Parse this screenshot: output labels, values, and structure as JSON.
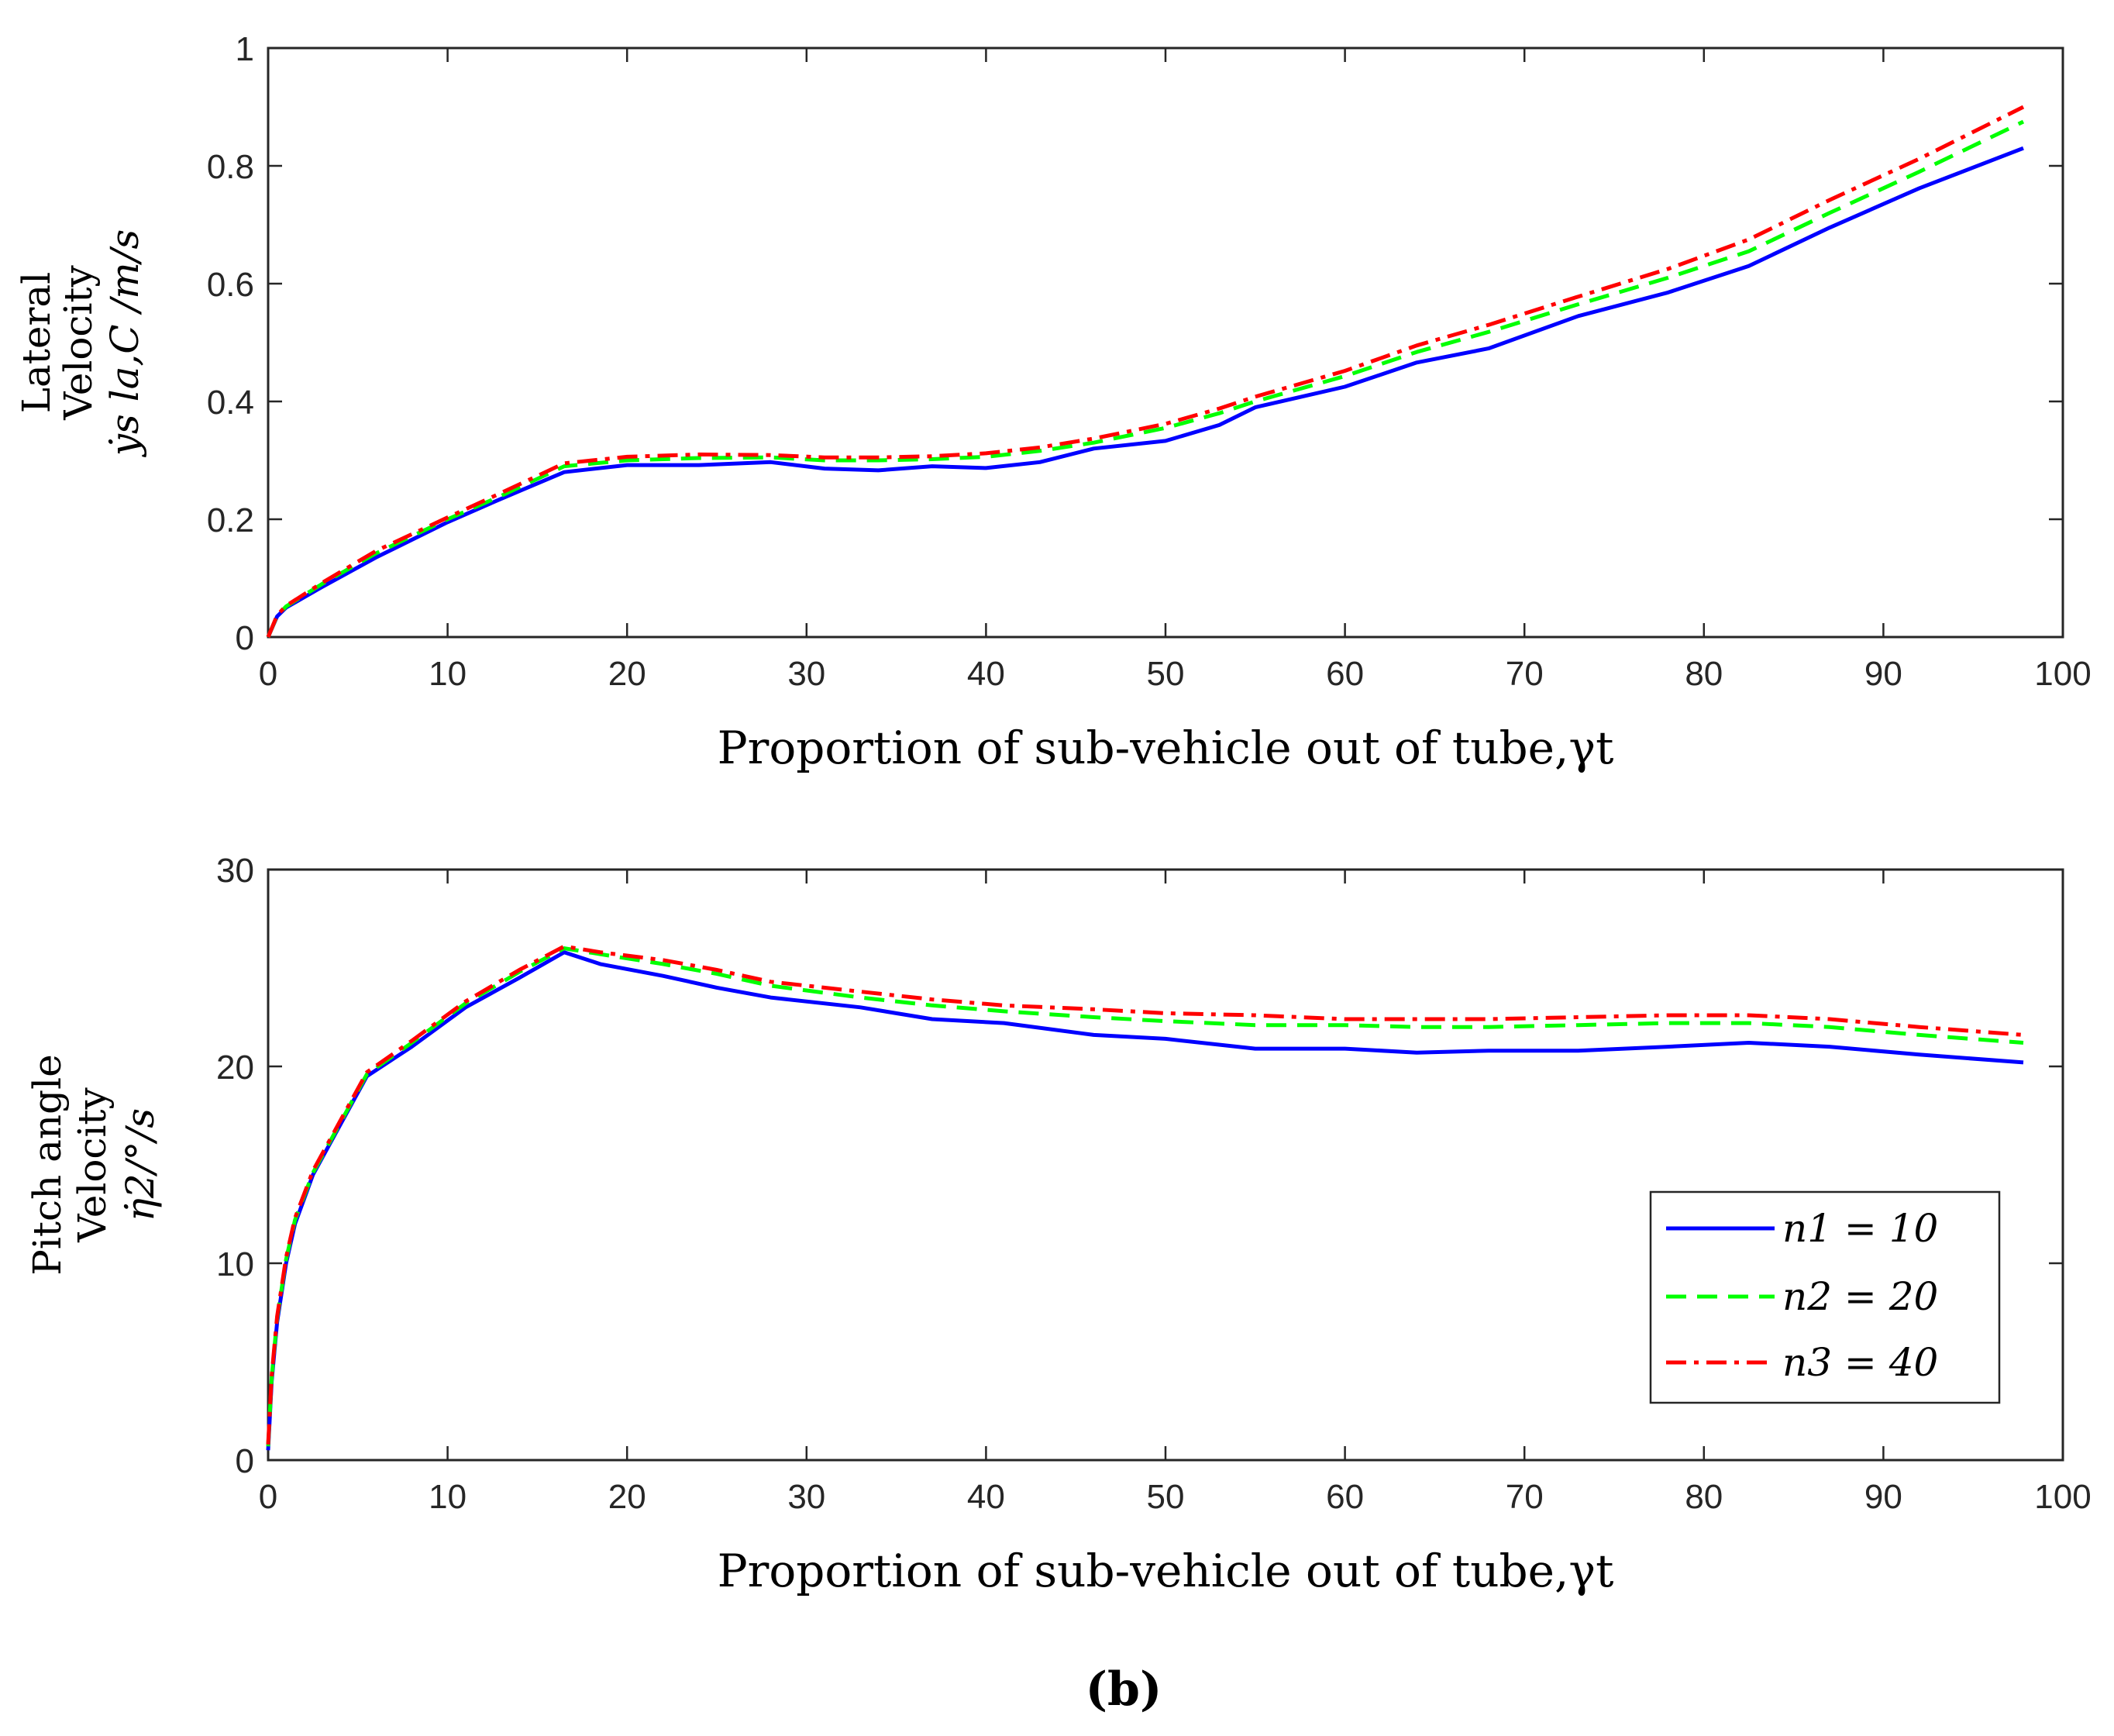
{
  "caption": "(b)",
  "chart_data": [
    {
      "type": "line",
      "title": "",
      "xlabel": "Proportion of sub-vehicle out of tube,γt",
      "ylabel_lines": [
        "Lateral",
        "Velocity"
      ],
      "ylabel_math": "ẏs la,C /m/s",
      "xlim": [
        0,
        100
      ],
      "ylim": [
        0,
        1
      ],
      "xticks": [
        "0",
        "10",
        "20",
        "30",
        "40",
        "50",
        "60",
        "70",
        "80",
        "90",
        "100"
      ],
      "yticks": [
        "0",
        "0.2",
        "0.4",
        "0.6",
        "0.8",
        "1"
      ],
      "x": [
        0,
        0.5,
        1,
        3,
        6,
        10,
        13,
        16.5,
        20,
        24,
        28,
        31,
        34,
        37,
        40,
        43,
        46,
        50,
        53,
        55,
        60,
        64,
        68,
        73,
        78,
        82.5,
        87,
        92,
        97.8
      ],
      "series": [
        {
          "name": "n1 = 10",
          "color": "#0000ff",
          "style": "solid",
          "values": [
            0,
            0.035,
            0.05,
            0.085,
            0.135,
            0.195,
            0.235,
            0.28,
            0.292,
            0.292,
            0.297,
            0.286,
            0.283,
            0.29,
            0.287,
            0.297,
            0.32,
            0.333,
            0.36,
            0.39,
            0.425,
            0.466,
            0.49,
            0.545,
            0.585,
            0.63,
            0.695,
            0.762,
            0.83
          ]
        },
        {
          "name": "n2 = 20",
          "color": "#00ff00",
          "style": "dashed",
          "values": [
            0,
            0.036,
            0.052,
            0.09,
            0.142,
            0.2,
            0.24,
            0.29,
            0.3,
            0.304,
            0.305,
            0.3,
            0.3,
            0.302,
            0.306,
            0.316,
            0.33,
            0.355,
            0.38,
            0.4,
            0.443,
            0.484,
            0.518,
            0.565,
            0.61,
            0.655,
            0.72,
            0.79,
            0.875
          ]
        },
        {
          "name": "n3 = 40",
          "color": "#ff0000",
          "style": "dashdot",
          "values": [
            0,
            0.037,
            0.053,
            0.092,
            0.146,
            0.203,
            0.245,
            0.295,
            0.306,
            0.31,
            0.309,
            0.305,
            0.305,
            0.307,
            0.312,
            0.322,
            0.337,
            0.362,
            0.388,
            0.408,
            0.452,
            0.495,
            0.53,
            0.578,
            0.625,
            0.675,
            0.742,
            0.812,
            0.9
          ]
        }
      ]
    },
    {
      "type": "line",
      "title": "",
      "xlabel": "Proportion of sub-vehicle out of tube,γt",
      "ylabel_lines": [
        "Pitch angle",
        "Velocity"
      ],
      "ylabel_math": "η̇2/°/s",
      "xlim": [
        0,
        100
      ],
      "ylim": [
        0,
        30
      ],
      "xticks": [
        "0",
        "10",
        "20",
        "30",
        "40",
        "50",
        "60",
        "70",
        "80",
        "90",
        "100"
      ],
      "yticks": [
        "0",
        "10",
        "20",
        "30"
      ],
      "legend": {
        "location": "bottom-right",
        "entries": [
          "n1 = 10",
          "n2 = 20",
          "n3 = 40"
        ]
      },
      "x": [
        0,
        0.2,
        0.5,
        1,
        1.5,
        2.5,
        4,
        5.5,
        8,
        11,
        14,
        16.5,
        18.5,
        22,
        25,
        28,
        33,
        37,
        41,
        46,
        50,
        55,
        60,
        64,
        68,
        73,
        78,
        82.5,
        87,
        92,
        97.8
      ],
      "series": [
        {
          "name": "n1 = 10",
          "color": "#0000ff",
          "style": "solid",
          "values": [
            0.5,
            4,
            7,
            10,
            12,
            14.5,
            17,
            19.5,
            21,
            23,
            24.5,
            25.8,
            25.2,
            24.6,
            24,
            23.5,
            23,
            22.4,
            22.2,
            21.6,
            21.4,
            20.9,
            20.9,
            20.7,
            20.8,
            20.8,
            21,
            21.2,
            21,
            20.6,
            20.2
          ]
        },
        {
          "name": "n2 = 20",
          "color": "#00ff00",
          "style": "dashed",
          "values": [
            0.7,
            4.2,
            7.2,
            10.2,
            12.2,
            14.6,
            17.1,
            19.6,
            21.2,
            23.2,
            24.8,
            26,
            25.7,
            25.2,
            24.7,
            24.1,
            23.5,
            23.1,
            22.8,
            22.5,
            22.3,
            22.1,
            22.1,
            22,
            22,
            22.1,
            22.2,
            22.2,
            22,
            21.6,
            21.2
          ]
        },
        {
          "name": "n3 = 40",
          "color": "#ff0000",
          "style": "dashdot",
          "values": [
            0.8,
            4.3,
            7.3,
            10.3,
            12.3,
            14.7,
            17.2,
            19.7,
            21.3,
            23.3,
            24.9,
            26.1,
            25.8,
            25.4,
            24.9,
            24.3,
            23.8,
            23.4,
            23.1,
            22.9,
            22.7,
            22.6,
            22.4,
            22.4,
            22.4,
            22.5,
            22.6,
            22.6,
            22.4,
            22,
            21.6
          ]
        }
      ]
    }
  ]
}
